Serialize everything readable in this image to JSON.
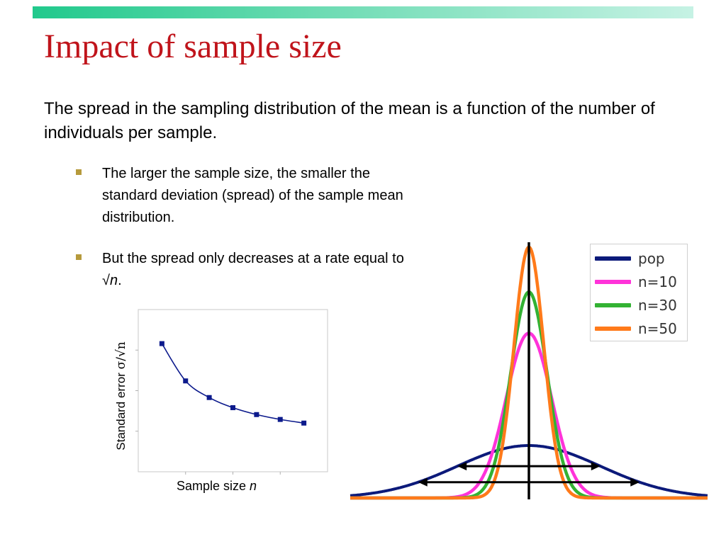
{
  "slide": {
    "title": "Impact of sample size",
    "intro": "The spread in the sampling distribution of the mean is a function of the number of individuals per sample.",
    "bullets": [
      {
        "text": "The larger the sample size, the smaller the standard deviation (spread) of the sample mean distribution."
      },
      {
        "prefix": "But the spread only decreases at a rate equal to √",
        "var": "n",
        "suffix": "."
      }
    ]
  },
  "colors": {
    "accent_bar": "#21c98c",
    "title": "#c0141b",
    "bullet_marker": "#b69a3c"
  },
  "chart_data": [
    {
      "type": "line",
      "title": "",
      "xlabel_prefix": "Sample size ",
      "xlabel_var": "n",
      "ylabel_text": "Standard error ",
      "ylabel_symbol": "σ/√n",
      "marker": "square",
      "color": "#0c1a8c",
      "series": [
        {
          "x": [
            10,
            20,
            30,
            40,
            50,
            60,
            70
          ],
          "values": [
            0.316,
            0.224,
            0.183,
            0.158,
            0.141,
            0.129,
            0.12
          ]
        }
      ],
      "xlim": [
        0,
        80
      ],
      "ylim": [
        0,
        0.4
      ],
      "tick_labels_visible": false,
      "grid": false
    },
    {
      "type": "line",
      "title": "",
      "legend": {
        "position": "top-right"
      },
      "x_center": 0,
      "xlim": [
        -5.5,
        5.5
      ],
      "series": [
        {
          "name": "pop",
          "color": "#0c1a7a",
          "sd": 2.2
        },
        {
          "name": "n=10",
          "color": "#ff33d9",
          "sd": 0.7
        },
        {
          "name": "n=30",
          "color": "#33b233",
          "sd": 0.56
        },
        {
          "name": "n=50",
          "color": "#ff7a1a",
          "sd": 0.46
        }
      ],
      "spread_arrows": [
        {
          "series": "pop",
          "half_width_sd": 1
        },
        {
          "series": "pop",
          "half_width_sd": 1.55
        }
      ]
    }
  ]
}
